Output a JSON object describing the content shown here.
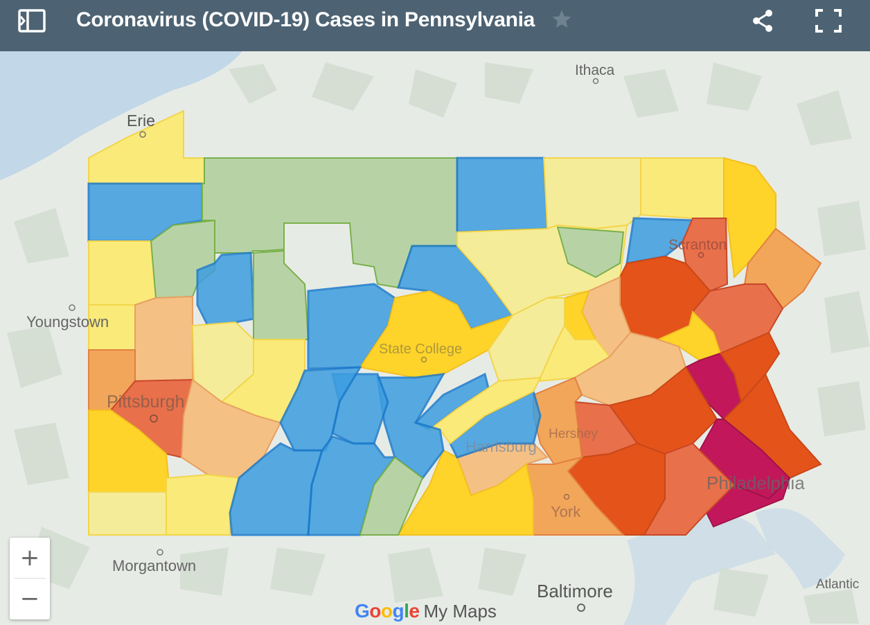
{
  "header": {
    "title": "Coronavirus (COVID-19) Cases in Pennsylvania",
    "icons": {
      "sidebar": "sidebar-toggle-icon",
      "star": "star-icon",
      "share": "share-icon",
      "fullscreen": "fullscreen-icon"
    }
  },
  "places": {
    "ithaca": "Ithaca",
    "erie": "Erie",
    "youngstown": "Youngstown",
    "pittsburgh": "Pittsburgh",
    "state_college": "State College",
    "scranton": "Scranton",
    "harrisburg": "Harrisburg",
    "hershey": "Hershey",
    "york": "York",
    "philadelphia": "Philadelphia",
    "morgantown": "Morgantown",
    "baltimore": "Baltimore",
    "atlantic": "Atlantic"
  },
  "zoom": {
    "in": "+",
    "out": "−"
  },
  "branding": {
    "g1": "G",
    "g2": "o",
    "g3": "o",
    "g4": "g",
    "g5": "l",
    "g6": "e",
    "product": "My Maps"
  },
  "colors": {
    "red": "#e4531a",
    "magenta": "#c2185b",
    "orange_red": "#e8704a",
    "orange": "#f2a65a",
    "light_orange": "#f4c084",
    "yellow": "#ffd42a",
    "light_yellow": "#faea7a",
    "pale_yellow": "#f5ec9a",
    "green": "#b7d3a6",
    "blue": "#3d9ee0",
    "water": "#c2d7e8",
    "land": "#e7ebe6"
  }
}
